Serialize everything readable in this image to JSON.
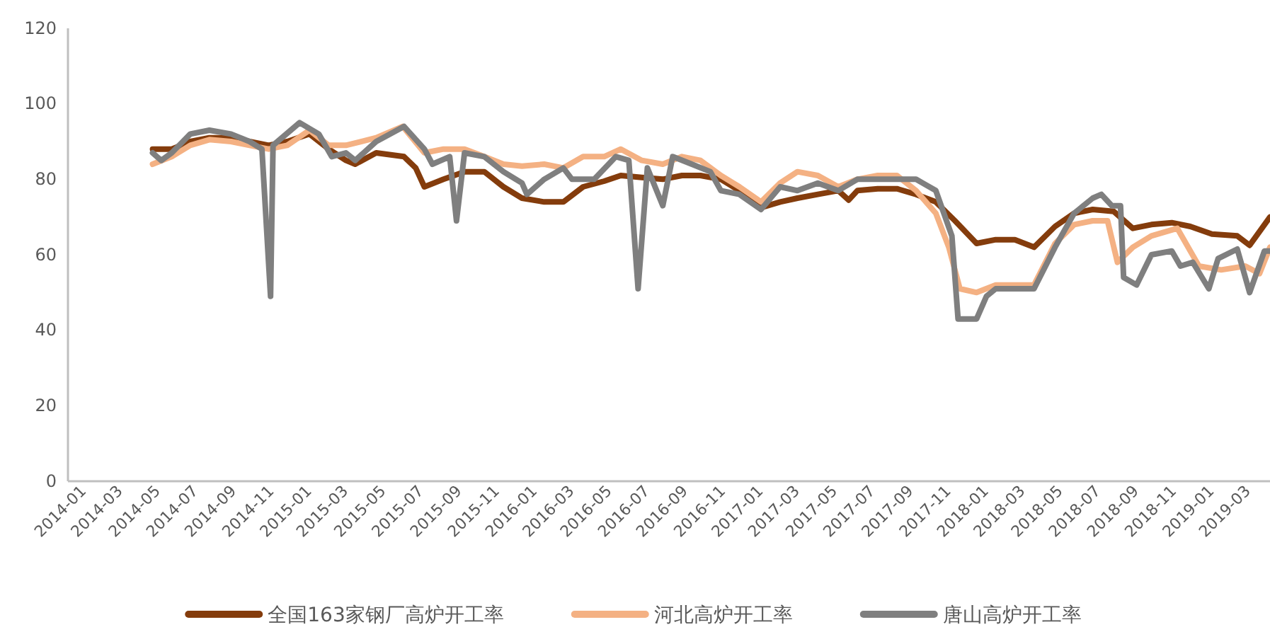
{
  "chart_data": {
    "type": "line",
    "ylim": [
      0,
      120
    ],
    "yticks": [
      0,
      20,
      40,
      60,
      80,
      100,
      120
    ],
    "xlim": [
      "2013-12-15",
      "2019-04-14"
    ],
    "xticks": [
      "2014-01",
      "2014-03",
      "2014-05",
      "2014-07",
      "2014-09",
      "2014-11",
      "2015-01",
      "2015-03",
      "2015-05",
      "2015-07",
      "2015-09",
      "2015-11",
      "2016-01",
      "2016-03",
      "2016-05",
      "2016-07",
      "2016-09",
      "2016-11",
      "2017-01",
      "2017-03",
      "2017-05",
      "2017-07",
      "2017-09",
      "2017-11",
      "2018-01",
      "2018-03",
      "2018-05",
      "2018-07",
      "2018-09",
      "2018-11",
      "2019-01",
      "2019-03"
    ],
    "grid": false,
    "legend": "bottom",
    "line_style": "solid",
    "marker": "none",
    "series": [
      {
        "name": "全国163家钢厂高炉开工率",
        "color": "#843c0c",
        "x": [
          "2014-05-01",
          "2014-06-01",
          "2014-07-01",
          "2014-08-01",
          "2014-09-05",
          "2014-10-05",
          "2014-11-05",
          "2014-12-05",
          "2015-01-10",
          "2015-02-10",
          "2015-03-10",
          "2015-03-25",
          "2015-04-28",
          "2015-06-12",
          "2015-07-01",
          "2015-07-15",
          "2015-08-15",
          "2015-09-18",
          "2015-10-20",
          "2015-11-20",
          "2015-12-20",
          "2016-01-25",
          "2016-02-25",
          "2016-03-28",
          "2016-05-01",
          "2016-05-28",
          "2016-07-01",
          "2016-08-04",
          "2016-09-04",
          "2016-10-04",
          "2016-11-06",
          "2016-12-06",
          "2017-01-10",
          "2017-02-10",
          "2017-03-10",
          "2017-04-12",
          "2017-05-15",
          "2017-06-01",
          "2017-06-15",
          "2017-07-18",
          "2017-08-18",
          "2017-09-18",
          "2017-10-20",
          "2017-11-20",
          "2017-12-25",
          "2018-01-25",
          "2018-02-25",
          "2018-03-28",
          "2018-05-01",
          "2018-06-01",
          "2018-07-01",
          "2018-08-04",
          "2018-09-04",
          "2018-10-04",
          "2018-11-06",
          "2018-12-06",
          "2019-01-10",
          "2019-02-20",
          "2019-03-12",
          "2019-04-14"
        ],
        "values": [
          88,
          88,
          90,
          91,
          91,
          90,
          89,
          90,
          92,
          88,
          85,
          84,
          87,
          86,
          83,
          78,
          80,
          82,
          82,
          78,
          75,
          74,
          74,
          78,
          79.5,
          81,
          80.5,
          80,
          81,
          81,
          80,
          77,
          72.5,
          74,
          75,
          76,
          77,
          74.5,
          77,
          77.5,
          77.5,
          76,
          74,
          69,
          63,
          64,
          64,
          62,
          67.5,
          71,
          72,
          71.5,
          67,
          68,
          68.5,
          67.5,
          65.5,
          65,
          62.5,
          70
        ]
      },
      {
        "name": "河北高炉开工率",
        "color": "#f4b183",
        "x": [
          "2014-05-01",
          "2014-06-01",
          "2014-07-01",
          "2014-08-01",
          "2014-09-05",
          "2014-10-05",
          "2014-11-05",
          "2014-12-05",
          "2015-01-10",
          "2015-02-10",
          "2015-03-10",
          "2015-04-28",
          "2015-06-10",
          "2015-07-15",
          "2015-08-15",
          "2015-08-25",
          "2015-09-18",
          "2015-10-20",
          "2015-11-20",
          "2015-12-20",
          "2016-01-25",
          "2016-02-25",
          "2016-03-28",
          "2016-05-01",
          "2016-05-28",
          "2016-07-01",
          "2016-08-04",
          "2016-09-04",
          "2016-10-04",
          "2016-11-06",
          "2016-12-06",
          "2017-01-10",
          "2017-02-10",
          "2017-03-10",
          "2017-04-12",
          "2017-05-15",
          "2017-06-15",
          "2017-07-18",
          "2017-08-18",
          "2017-09-18",
          "2017-10-20",
          "2017-11-10",
          "2017-11-28",
          "2017-12-25",
          "2018-01-25",
          "2018-02-25",
          "2018-03-28",
          "2018-05-01",
          "2018-06-01",
          "2018-07-01",
          "2018-07-25",
          "2018-08-10",
          "2018-09-04",
          "2018-10-04",
          "2018-11-15",
          "2018-12-20",
          "2019-01-25",
          "2019-03-05",
          "2019-03-28",
          "2019-04-14"
        ],
        "values": [
          84,
          86,
          89,
          90.5,
          90,
          89,
          88,
          89,
          93,
          89,
          89,
          91,
          94,
          87,
          88,
          88,
          88,
          86,
          84,
          83.5,
          84,
          83,
          86,
          86,
          88,
          85,
          84,
          86,
          85,
          81,
          78,
          74,
          79,
          82,
          81,
          78,
          80,
          81,
          81,
          77,
          71,
          62,
          51,
          50,
          52,
          52,
          52,
          63,
          68,
          69,
          69,
          58,
          62,
          65,
          67,
          57,
          56,
          57,
          55,
          62
        ]
      },
      {
        "name": "唐山高炉开工率",
        "color": "#7f7f7f",
        "x": [
          "2014-05-01",
          "2014-05-15",
          "2014-06-01",
          "2014-07-01",
          "2014-08-01",
          "2014-09-05",
          "2014-10-05",
          "2014-10-25",
          "2014-11-08",
          "2014-11-12",
          "2014-12-25",
          "2015-01-25",
          "2015-02-15",
          "2015-03-10",
          "2015-03-25",
          "2015-04-28",
          "2015-06-12",
          "2015-07-15",
          "2015-07-28",
          "2015-08-25",
          "2015-09-05",
          "2015-09-18",
          "2015-10-20",
          "2015-11-20",
          "2015-12-20",
          "2015-12-28",
          "2016-01-25",
          "2016-02-25",
          "2016-03-10",
          "2016-04-15",
          "2016-05-20",
          "2016-06-10",
          "2016-06-25",
          "2016-07-10",
          "2016-08-04",
          "2016-08-20",
          "2016-09-20",
          "2016-10-20",
          "2016-11-06",
          "2016-12-06",
          "2017-01-10",
          "2017-02-10",
          "2017-03-10",
          "2017-04-12",
          "2017-05-15",
          "2017-06-15",
          "2017-07-18",
          "2017-08-18",
          "2017-09-18",
          "2017-10-20",
          "2017-11-15",
          "2017-11-25",
          "2017-12-25",
          "2018-01-10",
          "2018-01-25",
          "2018-03-28",
          "2018-05-01",
          "2018-06-01",
          "2018-07-01",
          "2018-07-15",
          "2018-08-01",
          "2018-08-15",
          "2018-08-20",
          "2018-09-10",
          "2018-10-04",
          "2018-11-06",
          "2018-11-20",
          "2018-12-10",
          "2019-01-05",
          "2019-01-20",
          "2019-02-20",
          "2019-03-12",
          "2019-04-05",
          "2019-04-14"
        ],
        "values": [
          87,
          85,
          87,
          92,
          93,
          92,
          90,
          88,
          49,
          89,
          95,
          92,
          86,
          87,
          85,
          90,
          94,
          88,
          84,
          86,
          69,
          87,
          86,
          82,
          79,
          76,
          80,
          83,
          80,
          80,
          86,
          85,
          51,
          83,
          73,
          86,
          84,
          82,
          77,
          76,
          72,
          78,
          77,
          79,
          77,
          80,
          80,
          80,
          80,
          77,
          65,
          43,
          43,
          49,
          51,
          51,
          62,
          71,
          75,
          76,
          73,
          73,
          54,
          52,
          60,
          61,
          57,
          58,
          51,
          59,
          61.5,
          50,
          61,
          61
        ]
      }
    ]
  }
}
